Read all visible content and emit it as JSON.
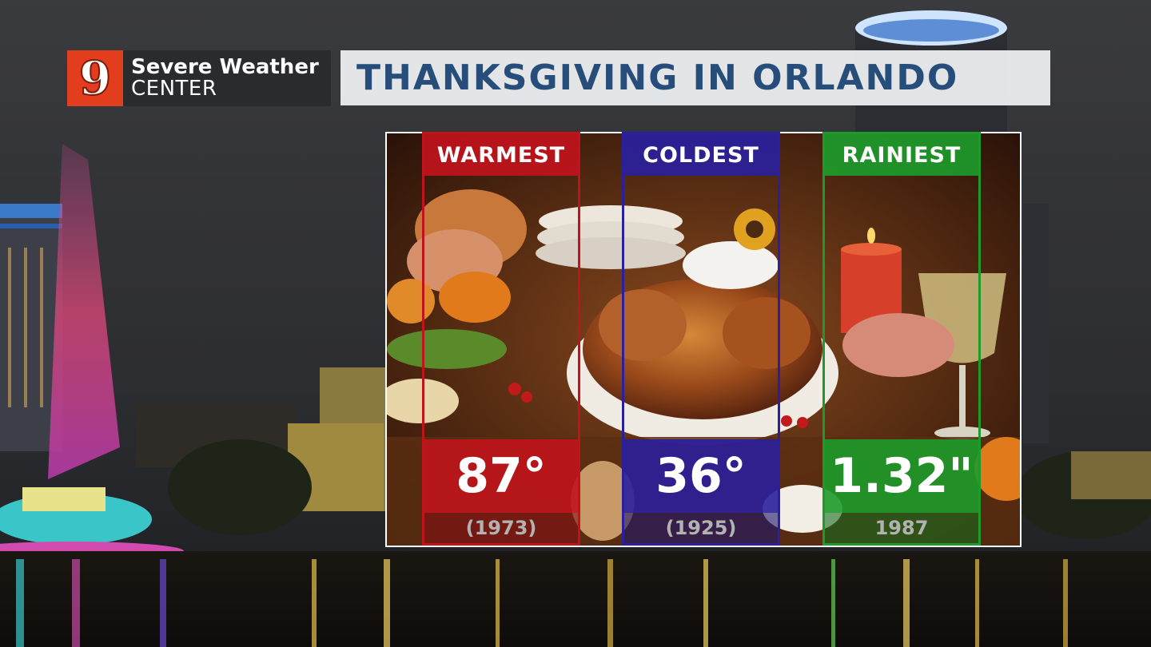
{
  "branding": {
    "logo_number": "9",
    "logo_line1": "Severe Weather",
    "logo_line2": "CENTER"
  },
  "title": "THANKSGIVING IN ORLANDO",
  "records": [
    {
      "label": "WARMEST",
      "value": "87°",
      "year": "(1973)",
      "color": "#c0141c"
    },
    {
      "label": "COLDEST",
      "value": "36°",
      "year": "(1925)",
      "color": "#2a1f9c"
    },
    {
      "label": "RAINIEST",
      "value": "1.32\"",
      "year": "1987",
      "color": "#1d9a2a"
    }
  ],
  "colors": {
    "title_text": "#274d7a",
    "logo_red": "#e23d1c",
    "warm": "#c0141c",
    "cold": "#2a1f9c",
    "rain": "#1d9a2a"
  }
}
